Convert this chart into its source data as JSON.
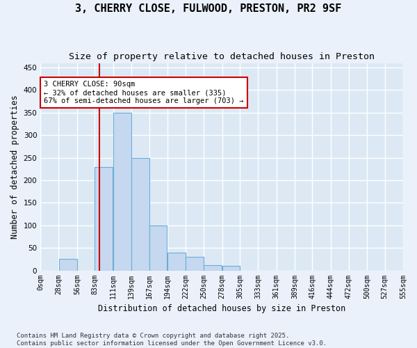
{
  "title": "3, CHERRY CLOSE, FULWOOD, PRESTON, PR2 9SF",
  "subtitle": "Size of property relative to detached houses in Preston",
  "xlabel": "Distribution of detached houses by size in Preston",
  "ylabel": "Number of detached properties",
  "bar_values": [
    0,
    25,
    0,
    230,
    350,
    250,
    100,
    40,
    30,
    12,
    10,
    0,
    0,
    0,
    0,
    0,
    0,
    0,
    0,
    0
  ],
  "bin_edges": [
    0,
    28,
    56,
    83,
    111,
    139,
    167,
    194,
    222,
    250,
    278,
    305,
    333,
    361,
    389,
    416,
    444,
    472,
    500,
    527,
    555
  ],
  "tick_labels": [
    "0sqm",
    "28sqm",
    "56sqm",
    "83sqm",
    "111sqm",
    "139sqm",
    "167sqm",
    "194sqm",
    "222sqm",
    "250sqm",
    "278sqm",
    "305sqm",
    "333sqm",
    "361sqm",
    "389sqm",
    "416sqm",
    "444sqm",
    "472sqm",
    "500sqm",
    "527sqm",
    "555sqm"
  ],
  "bar_color": "#c5d8f0",
  "bar_edge_color": "#6aaed6",
  "vline_x": 90,
  "vline_color": "#cc0000",
  "annotation_text": "3 CHERRY CLOSE: 90sqm\n← 32% of detached houses are smaller (335)\n67% of semi-detached houses are larger (703) →",
  "annotation_box_color": "#cc0000",
  "ylim": [
    0,
    460
  ],
  "yticks": [
    0,
    50,
    100,
    150,
    200,
    250,
    300,
    350,
    400,
    450
  ],
  "background_color": "#dce9f5",
  "grid_color": "#ffffff",
  "fig_facecolor": "#eaf1fb",
  "footer_text": "Contains HM Land Registry data © Crown copyright and database right 2025.\nContains public sector information licensed under the Open Government Licence v3.0.",
  "title_fontsize": 11,
  "subtitle_fontsize": 9.5,
  "axis_label_fontsize": 8.5,
  "tick_fontsize": 7,
  "annotation_fontsize": 7.5,
  "footer_fontsize": 6.5
}
